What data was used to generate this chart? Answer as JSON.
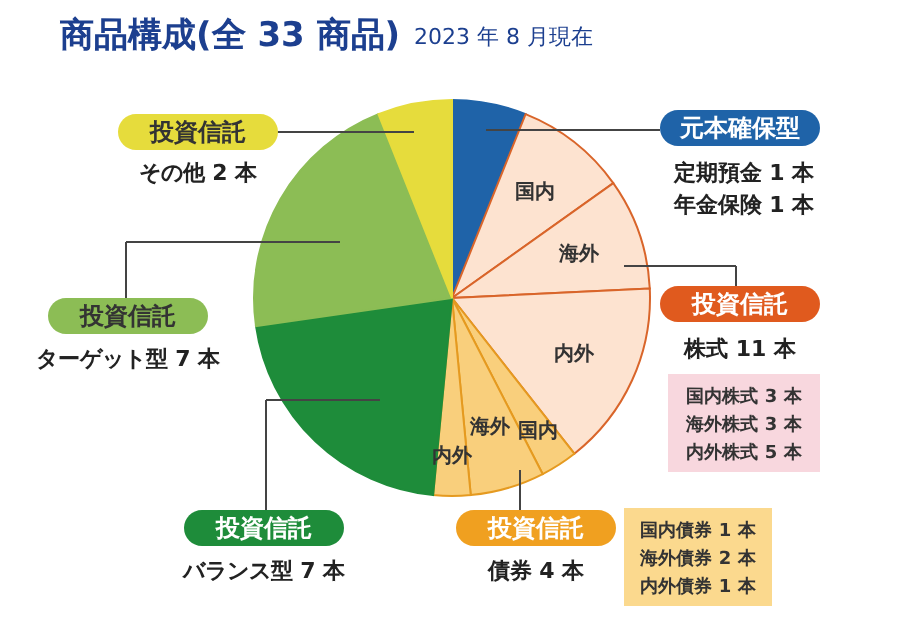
{
  "chart_data": {
    "type": "pie",
    "title": "商品構成(全 33 商品)",
    "subtitle": "2023 年 8 月現在",
    "categories": [
      null,
      "国内",
      "海外",
      "内外",
      "国内",
      "海外",
      "内外",
      null,
      null,
      null
    ],
    "values": [
      6.06,
      9.09,
      9.09,
      15.16,
      3.03,
      6.06,
      3.03,
      21.21,
      21.21,
      6.06
    ],
    "colors": [
      "#1f63a8",
      "#fde3d0",
      "#fde3d0",
      "#fde3d0",
      "#f9cf7c",
      "#f9cf7c",
      "#f9cf7c",
      "#1e8c3a",
      "#8cbd55",
      "#e6dc3c"
    ],
    "annotations": [
      "元本確保型",
      "定期預金 1 本",
      "年金保険 1 本",
      "投資信託",
      "株式 11 本",
      "国内株式 3 本",
      "海外株式 3 本",
      "内外株式 5 本",
      "投資信託",
      "債券 4 本",
      "国内債券 1 本",
      "海外債券 2 本",
      "内外債券 1 本",
      "投資信託",
      "バランス型 7 本",
      "投資信託",
      "ターゲット型 7 本",
      "投資信託",
      "その他 2 本"
    ]
  }
}
